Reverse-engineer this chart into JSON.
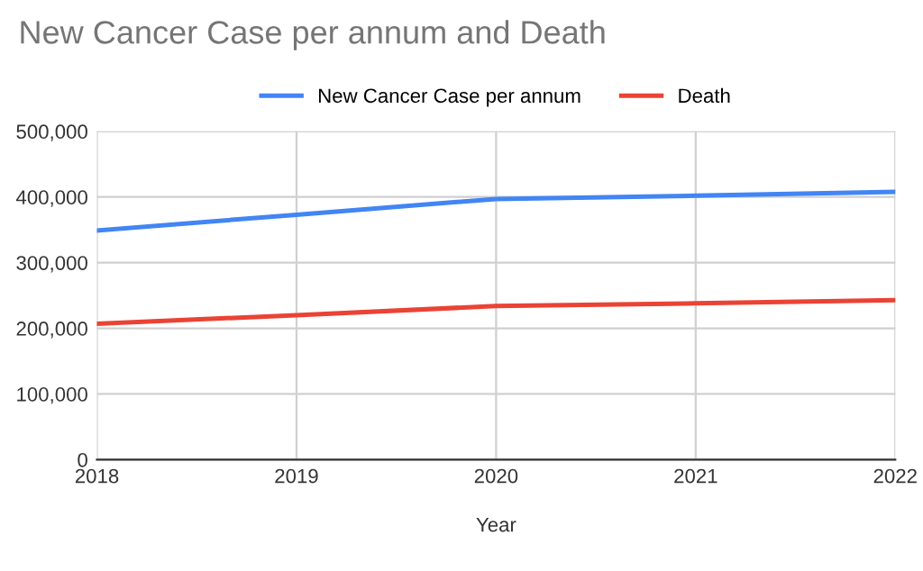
{
  "chart_data": {
    "type": "line",
    "title": "New Cancer Case per annum and Death",
    "xlabel": "Year",
    "x": [
      2018,
      2019,
      2020,
      2021,
      2022
    ],
    "series": [
      {
        "name": "New Cancer Case per annum",
        "color": "#4285f4",
        "values": [
          349000,
          373000,
          397000,
          402000,
          408000
        ]
      },
      {
        "name": "Death",
        "color": "#ea4335",
        "values": [
          207000,
          220000,
          234000,
          238000,
          243000
        ]
      }
    ],
    "xlim": [
      2018,
      2022
    ],
    "xticks": [
      2018,
      2019,
      2020,
      2021,
      2022
    ],
    "ylim": [
      0,
      500000
    ],
    "yticks": [
      {
        "value": 0,
        "label": "0"
      },
      {
        "value": 100000,
        "label": "100,000"
      },
      {
        "value": 200000,
        "label": "200,000"
      },
      {
        "value": 300000,
        "label": "300,000"
      },
      {
        "value": 400000,
        "label": "400,000"
      },
      {
        "value": 500000,
        "label": "500,000"
      }
    ],
    "grid": true,
    "legend": "top",
    "marker": "none",
    "line_style": "solid"
  }
}
